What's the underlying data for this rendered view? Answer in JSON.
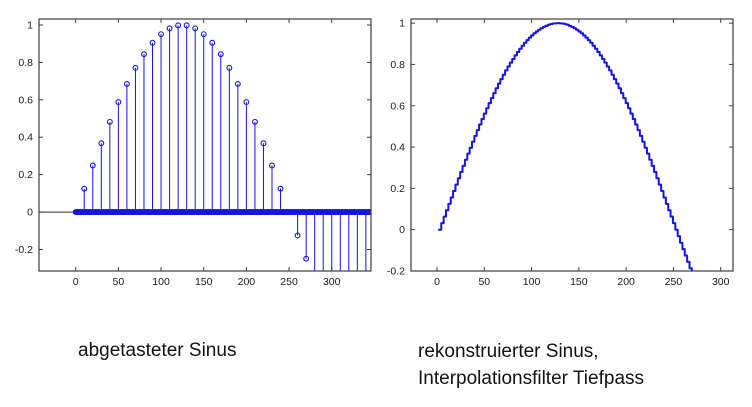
{
  "colors": {
    "series_blue": "#1414e6",
    "axis": "#3d3d3d",
    "zero_line": "#2b2b2b",
    "tick_text": "#1a1a1a",
    "caption_text": "#121212",
    "background": "#ffffff"
  },
  "chart_data": [
    {
      "type": "stem",
      "caption": "abgetasteter Sinus",
      "description": "sampled sine sin(2*pi*n/500); nonzero samples every 10, zeros stuffed at every integer in between; stems below ylim are clipped",
      "xlim": [
        -43,
        346
      ],
      "ylim": [
        -0.315,
        1.032
      ],
      "xticks": [
        0,
        50,
        100,
        150,
        200,
        250,
        300
      ],
      "yticks": [
        -0.2,
        0,
        0.2,
        0.4,
        0.6,
        0.8,
        1
      ],
      "grid": false,
      "legend": false,
      "zero_line": true,
      "marker": "open-circle",
      "zero_fill": {
        "from": 0,
        "to": 346,
        "step": 1
      },
      "samples": [
        [
          0,
          0
        ],
        [
          10,
          0.125
        ],
        [
          20,
          0.249
        ],
        [
          30,
          0.368
        ],
        [
          40,
          0.482
        ],
        [
          50,
          0.588
        ],
        [
          60,
          0.685
        ],
        [
          70,
          0.771
        ],
        [
          80,
          0.844
        ],
        [
          90,
          0.905
        ],
        [
          100,
          0.951
        ],
        [
          110,
          0.982
        ],
        [
          120,
          0.998
        ],
        [
          130,
          0.998
        ],
        [
          140,
          0.982
        ],
        [
          150,
          0.951
        ],
        [
          160,
          0.905
        ],
        [
          170,
          0.844
        ],
        [
          180,
          0.771
        ],
        [
          190,
          0.685
        ],
        [
          200,
          0.588
        ],
        [
          210,
          0.482
        ],
        [
          220,
          0.368
        ],
        [
          230,
          0.249
        ],
        [
          240,
          0.125
        ],
        [
          250,
          0
        ],
        [
          260,
          -0.125
        ],
        [
          270,
          -0.249
        ],
        [
          280,
          -0.368
        ],
        [
          290,
          -0.482
        ],
        [
          300,
          -0.588
        ],
        [
          310,
          -0.685
        ],
        [
          320,
          -0.771
        ],
        [
          330,
          -0.844
        ],
        [
          340,
          -0.905
        ]
      ]
    },
    {
      "type": "line",
      "caption_lines": [
        "rekonstruierter Sinus,",
        "Interpolationsfilter Tiefpass"
      ],
      "description": "lowpass-interpolated reconstruction of the sampled sine, slight staircase texture, curve exits plot at bottom near x=267",
      "xlim": [
        -27.5,
        313
      ],
      "ylim": [
        -0.2,
        1.02
      ],
      "xticks": [
        0,
        50,
        100,
        150,
        200,
        250,
        300
      ],
      "yticks": [
        -0.2,
        0,
        0.2,
        0.4,
        0.6,
        0.8,
        1
      ],
      "grid": false,
      "legend": false,
      "zero_line": false,
      "points": [
        [
          2,
          0
        ],
        [
          7,
          0.063
        ],
        [
          12,
          0.125
        ],
        [
          17,
          0.187
        ],
        [
          22,
          0.249
        ],
        [
          27,
          0.309
        ],
        [
          32,
          0.368
        ],
        [
          37,
          0.426
        ],
        [
          42,
          0.482
        ],
        [
          47,
          0.536
        ],
        [
          52,
          0.588
        ],
        [
          57,
          0.637
        ],
        [
          62,
          0.685
        ],
        [
          67,
          0.729
        ],
        [
          72,
          0.771
        ],
        [
          77,
          0.809
        ],
        [
          82,
          0.844
        ],
        [
          87,
          0.876
        ],
        [
          92,
          0.905
        ],
        [
          97,
          0.93
        ],
        [
          102,
          0.951
        ],
        [
          107,
          0.968
        ],
        [
          112,
          0.982
        ],
        [
          117,
          0.992
        ],
        [
          122,
          0.998
        ],
        [
          127,
          1.0
        ],
        [
          132,
          0.998
        ],
        [
          137,
          0.992
        ],
        [
          142,
          0.982
        ],
        [
          147,
          0.968
        ],
        [
          152,
          0.951
        ],
        [
          157,
          0.93
        ],
        [
          162,
          0.905
        ],
        [
          167,
          0.876
        ],
        [
          172,
          0.844
        ],
        [
          177,
          0.809
        ],
        [
          182,
          0.771
        ],
        [
          187,
          0.729
        ],
        [
          192,
          0.685
        ],
        [
          197,
          0.637
        ],
        [
          202,
          0.588
        ],
        [
          207,
          0.536
        ],
        [
          212,
          0.482
        ],
        [
          217,
          0.426
        ],
        [
          222,
          0.368
        ],
        [
          227,
          0.309
        ],
        [
          232,
          0.249
        ],
        [
          237,
          0.187
        ],
        [
          242,
          0.125
        ],
        [
          247,
          0.063
        ],
        [
          252,
          0
        ],
        [
          257,
          -0.063
        ],
        [
          262,
          -0.125
        ],
        [
          267,
          -0.187
        ],
        [
          272,
          -0.249
        ]
      ]
    }
  ]
}
